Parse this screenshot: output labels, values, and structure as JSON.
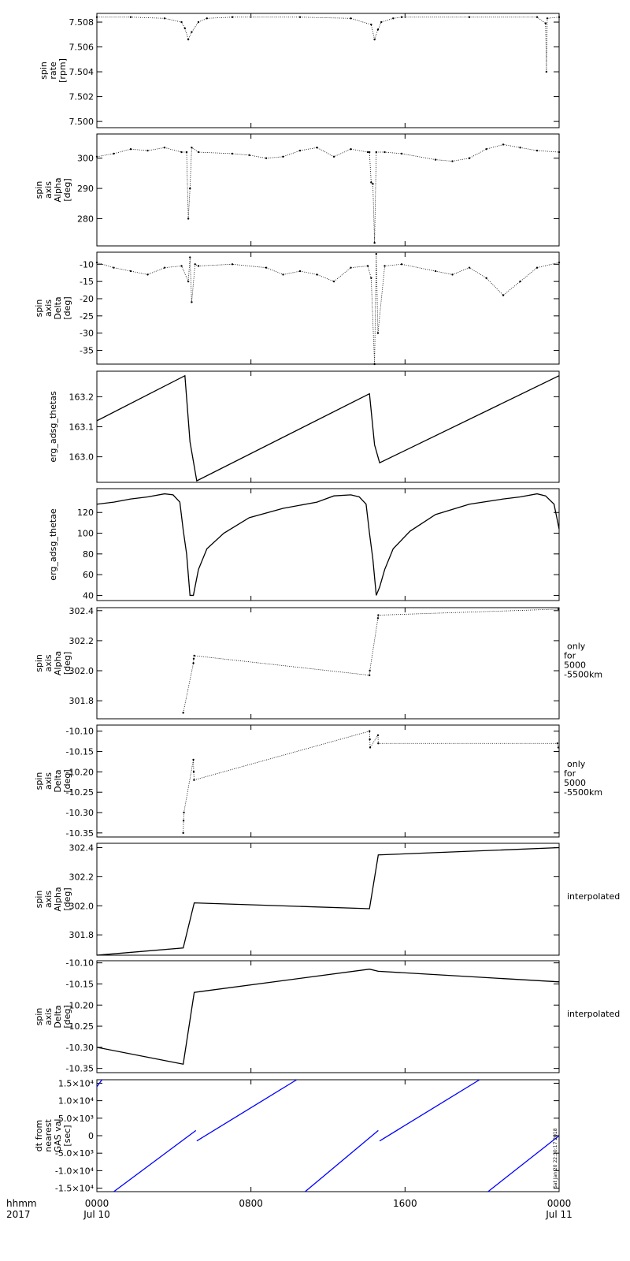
{
  "chart_data": [
    {
      "type": "scatter",
      "ylabel": [
        "spin",
        "rate",
        "[rpm]"
      ],
      "ylim": [
        7.4995,
        7.5087
      ],
      "yticks": [
        "7.500",
        "7.502",
        "7.504",
        "7.506",
        "7.508"
      ],
      "ytick_values": [
        7.5,
        7.502,
        7.504,
        7.506,
        7.508
      ],
      "series": [
        {
          "x": [
            0.0,
            2.0,
            4.0,
            5.0,
            5.2,
            5.4,
            5.6,
            6.0,
            6.5,
            8.0,
            12.0,
            15.0,
            16.2,
            16.4,
            16.6,
            16.8,
            17.5,
            18.0,
            22.0,
            26.0,
            26.5,
            26.55,
            26.6,
            27.3
          ],
          "y": [
            7.5084,
            7.5084,
            7.5083,
            7.508,
            7.5075,
            7.5066,
            7.5072,
            7.508,
            7.5083,
            7.5084,
            7.5084,
            7.5083,
            7.5078,
            7.5066,
            7.5074,
            7.508,
            7.5083,
            7.5084,
            7.5084,
            7.5084,
            7.5079,
            7.504,
            7.5083,
            7.5084
          ]
        }
      ]
    },
    {
      "type": "scatter",
      "ylabel": [
        "spin",
        "axis",
        "Alpha",
        "[deg]"
      ],
      "ylim": [
        271,
        308
      ],
      "yticks": [
        "280",
        "290",
        "300"
      ],
      "ytick_values": [
        280,
        290,
        300
      ],
      "series": [
        {
          "x": [
            0.0,
            1.0,
            2.0,
            3.0,
            4.0,
            5.0,
            5.3,
            5.4,
            5.5,
            5.6,
            6.0,
            8.0,
            9.0,
            10.0,
            11.0,
            12.0,
            13.0,
            14.0,
            15.0,
            16.0,
            16.1,
            16.2,
            16.3,
            16.4,
            16.5,
            17.0,
            18.0,
            20.0,
            21.0,
            22.0,
            23.0,
            24.0,
            25.0,
            26.0,
            27.3
          ],
          "y": [
            300.5,
            301.5,
            303.0,
            302.5,
            303.5,
            302.0,
            302.0,
            280.0,
            290.0,
            303.5,
            302.0,
            301.5,
            301.0,
            300.0,
            300.5,
            302.5,
            303.5,
            300.5,
            303.0,
            302.0,
            302.0,
            292.0,
            291.5,
            272.0,
            302.0,
            302.0,
            301.5,
            299.5,
            299.0,
            300.0,
            303.0,
            304.5,
            303.5,
            302.5,
            302.0
          ]
        }
      ]
    },
    {
      "type": "scatter",
      "ylabel": [
        "spin",
        "axis",
        "Delta",
        "[deg]"
      ],
      "ylim": [
        -39,
        -6.5
      ],
      "yticks": [
        "-35",
        "-30",
        "-25",
        "-20",
        "-15",
        "-10"
      ],
      "ytick_values": [
        -35,
        -30,
        -25,
        -20,
        -15,
        -10
      ],
      "series": [
        {
          "x": [
            0.0,
            1.0,
            2.0,
            3.0,
            4.0,
            5.0,
            5.4,
            5.5,
            5.6,
            5.8,
            6.0,
            8.0,
            10.0,
            11.0,
            12.0,
            13.0,
            14.0,
            15.0,
            16.0,
            16.2,
            16.4,
            16.5,
            16.6,
            17.0,
            18.0,
            20.0,
            21.0,
            22.0,
            23.0,
            24.0,
            25.0,
            26.0,
            27.3
          ],
          "y": [
            -9.5,
            -11.0,
            -12.0,
            -13.0,
            -11.0,
            -10.5,
            -15.0,
            -8.0,
            -21.0,
            -10.0,
            -10.5,
            -10.0,
            -11.0,
            -13.0,
            -12.0,
            -13.0,
            -15.0,
            -11.0,
            -10.5,
            -14.0,
            -39.0,
            -7.0,
            -30.0,
            -10.5,
            -10.0,
            -12.0,
            -13.0,
            -11.0,
            -14.0,
            -19.0,
            -15.0,
            -11.0,
            -9.5
          ]
        }
      ]
    },
    {
      "type": "line",
      "ylabel": [
        "erg_adsg_thetas"
      ],
      "ylim": [
        162.915,
        163.285
      ],
      "yticks": [
        "163.0",
        "163.1",
        "163.2"
      ],
      "ytick_values": [
        163.0,
        163.1,
        163.2
      ],
      "series": [
        {
          "x": [
            0.0,
            5.2,
            5.5,
            5.9,
            16.1,
            16.4,
            16.7,
            27.3
          ],
          "y": [
            163.12,
            163.27,
            163.05,
            162.92,
            163.21,
            163.04,
            162.98,
            163.27
          ]
        }
      ]
    },
    {
      "type": "line",
      "ylabel": [
        "erg_adsg_thetae"
      ],
      "ylim": [
        35,
        143
      ],
      "yticks": [
        "40",
        "60",
        "80",
        "100",
        "120"
      ],
      "ytick_values": [
        40,
        60,
        80,
        100,
        120
      ],
      "series": [
        {
          "x": [
            0.0,
            1.0,
            2.0,
            3.0,
            4.0,
            4.5,
            4.9,
            5.1,
            5.3,
            5.5,
            5.7,
            6.0,
            6.5,
            7.5,
            9.0,
            11.0,
            13.0,
            14.0,
            15.0,
            15.5,
            15.9,
            16.1,
            16.3,
            16.5,
            16.7,
            17.0,
            17.5,
            18.5,
            20.0,
            22.0,
            24.0,
            25.0,
            26.0,
            26.5,
            27.0,
            27.3
          ],
          "y": [
            128,
            130,
            133,
            135,
            138,
            137,
            130,
            103,
            80,
            40,
            40,
            65,
            85,
            100,
            115,
            124,
            130,
            136,
            137,
            135,
            128,
            100,
            75,
            40,
            48,
            65,
            85,
            102,
            118,
            128,
            133,
            135,
            138,
            136,
            128,
            104
          ]
        }
      ]
    },
    {
      "type": "scatter",
      "ylabel": [
        "spin",
        "axis",
        "Alpha",
        "[deg]"
      ],
      "note": [
        "only",
        "for",
        "5000",
        "-5500km"
      ],
      "ylim": [
        301.68,
        302.42
      ],
      "yticks": [
        "301.8",
        "302.0",
        "302.2",
        "302.4"
      ],
      "ytick_values": [
        301.8,
        302.0,
        302.2,
        302.4
      ],
      "series": [
        {
          "x": [
            5.1,
            5.7,
            5.72,
            5.75,
            16.1,
            16.12,
            16.6,
            16.62,
            27.25
          ],
          "y": [
            301.72,
            302.05,
            302.08,
            302.1,
            301.97,
            302.0,
            302.35,
            302.37,
            302.41
          ]
        }
      ]
    },
    {
      "type": "scatter",
      "ylabel": [
        "spin",
        "axis",
        "Delta",
        "[deg]"
      ],
      "note": [
        "only",
        "for",
        "5000",
        "-5500km"
      ],
      "ylim": [
        -10.36,
        -10.085
      ],
      "yticks": [
        "-10.35",
        "-10.30",
        "-10.25",
        "-10.20",
        "-10.15",
        "-10.10"
      ],
      "ytick_values": [
        -10.35,
        -10.3,
        -10.25,
        -10.2,
        -10.15,
        -10.1
      ],
      "series": [
        {
          "x": [
            5.1,
            5.12,
            5.14,
            5.7,
            5.72,
            5.74,
            16.1,
            16.12,
            16.14,
            16.6,
            16.62,
            27.2,
            27.25
          ],
          "y": [
            -10.35,
            -10.32,
            -10.3,
            -10.17,
            -10.2,
            -10.22,
            -10.1,
            -10.12,
            -10.14,
            -10.11,
            -10.13,
            -10.13,
            -10.14
          ]
        }
      ]
    },
    {
      "type": "line",
      "ylabel": [
        "spin",
        "axis",
        "Alpha",
        "[deg]"
      ],
      "note": [
        "interpolated"
      ],
      "ylim": [
        301.66,
        302.43
      ],
      "yticks": [
        "301.8",
        "302.0",
        "302.2",
        "302.4"
      ],
      "ytick_values": [
        301.8,
        302.0,
        302.2,
        302.4
      ],
      "series": [
        {
          "x": [
            0.0,
            5.1,
            5.75,
            16.1,
            16.62,
            27.3
          ],
          "y": [
            301.66,
            301.71,
            302.02,
            301.98,
            302.35,
            302.4
          ]
        }
      ]
    },
    {
      "type": "line",
      "ylabel": [
        "spin",
        "axis",
        "Delta",
        "[deg]"
      ],
      "note": [
        "interpolated"
      ],
      "ylim": [
        -10.36,
        -10.095
      ],
      "yticks": [
        "-10.35",
        "-10.30",
        "-10.25",
        "-10.20",
        "-10.15",
        "-10.10"
      ],
      "ytick_values": [
        -10.35,
        -10.3,
        -10.25,
        -10.2,
        -10.15,
        -10.1
      ],
      "series": [
        {
          "x": [
            0.0,
            5.1,
            5.75,
            16.1,
            16.62,
            27.3
          ],
          "y": [
            -10.3,
            -10.34,
            -10.17,
            -10.115,
            -10.12,
            -10.145
          ]
        }
      ]
    },
    {
      "type": "line",
      "ylabel": [
        "dt from",
        "nearest",
        "GAS val",
        "[sec]"
      ],
      "ylim": [
        -16000,
        16000
      ],
      "yticks": [
        "-1.5×10⁴",
        "-1.0×10⁴",
        "-5.0×10³",
        "0",
        "5.0×10³",
        "1.0×10⁴",
        "1.5×10⁴"
      ],
      "ytick_values": [
        -15000,
        -10000,
        -5000,
        0,
        5000,
        10000,
        15000
      ],
      "color": "#0000ff",
      "segments": [
        {
          "x": [
            0.0,
            0.3
          ],
          "y": [
            14000,
            16000
          ]
        },
        {
          "x": [
            1.0,
            5.85
          ],
          "y": [
            -16000,
            1500
          ]
        },
        {
          "x": [
            5.9,
            11.8
          ],
          "y": [
            -1500,
            16000
          ]
        },
        {
          "x": [
            12.3,
            16.62
          ],
          "y": [
            -16000,
            1500
          ]
        },
        {
          "x": [
            16.7,
            22.6
          ],
          "y": [
            -1500,
            16000
          ]
        },
        {
          "x": [
            23.1,
            27.3
          ],
          "y": [
            -16000,
            0
          ]
        }
      ],
      "side_note": "Sat Jan 20 22:30:17 2018"
    }
  ],
  "x_axis": {
    "xlim": [
      0,
      27.3
    ],
    "ticks": [
      {
        "x": 0,
        "line1": "0000",
        "line2": "Jul 10"
      },
      {
        "x": 9.1,
        "line1": "0800",
        "line2": ""
      },
      {
        "x": 18.2,
        "line1": "1600",
        "line2": ""
      },
      {
        "x": 27.3,
        "line1": "0000",
        "line2": "Jul 11"
      }
    ],
    "label_line1": "hhmm",
    "label_line2": "2017"
  }
}
